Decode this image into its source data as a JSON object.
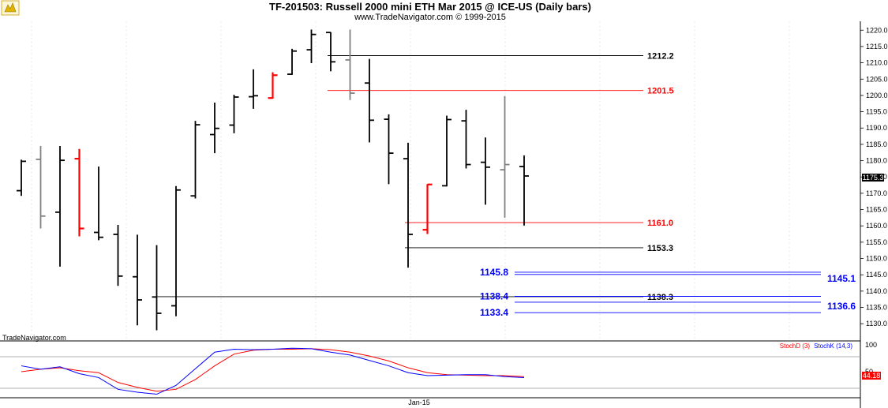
{
  "header": {
    "title": "TF-201503:  Russell 2000 mini ETH Mar 2015 @ ICE-US  (Daily bars)",
    "subtitle": "www.TradeNavigator.com © 1999-2015",
    "watermark": "TradeNavigator.com"
  },
  "colors": {
    "bar_black": "#000000",
    "bar_red": "#ff0000",
    "bar_gray": "#808080",
    "level_blue": "#0000ff",
    "level_red": "#ff0000",
    "level_black": "#000000",
    "stoch_d": "#ff0000",
    "stoch_k": "#0000ff"
  },
  "chart_data": {
    "type": "ohlc",
    "price_axis": {
      "ylim": [
        1127,
        1222
      ],
      "ticks": [
        1130,
        1135,
        1140,
        1145,
        1150,
        1155,
        1160,
        1165,
        1170,
        1175,
        1180,
        1185,
        1190,
        1195,
        1200,
        1205,
        1210,
        1215,
        1220
      ],
      "last_price_label": "1175.3"
    },
    "x_label": "Jan-15",
    "bars": [
      {
        "o": 1170.8,
        "h": 1180.3,
        "l": 1169.2,
        "c": 1179.8,
        "color": "black"
      },
      {
        "o": 1180.4,
        "h": 1184.5,
        "l": 1159.2,
        "c": 1163.0,
        "color": "gray"
      },
      {
        "o": 1164.2,
        "h": 1184.5,
        "l": 1147.5,
        "c": 1180.1,
        "color": "black"
      },
      {
        "o": 1180.6,
        "h": 1183.6,
        "l": 1156.8,
        "c": 1159.2,
        "color": "red"
      },
      {
        "o": 1158.0,
        "h": 1178.2,
        "l": 1155.6,
        "c": 1156.5,
        "color": "black"
      },
      {
        "o": 1157.4,
        "h": 1160.3,
        "l": 1141.6,
        "c": 1144.6,
        "color": "black"
      },
      {
        "o": 1144.4,
        "h": 1157.3,
        "l": 1129.5,
        "c": 1137.3,
        "color": "black"
      },
      {
        "o": 1138.2,
        "h": 1154.1,
        "l": 1128.0,
        "c": 1133.2,
        "color": "black"
      },
      {
        "o": 1135.5,
        "h": 1172.2,
        "l": 1132.3,
        "c": 1171.0,
        "color": "black"
      },
      {
        "o": 1169.2,
        "h": 1192.2,
        "l": 1168.4,
        "c": 1191.0,
        "color": "black"
      },
      {
        "o": 1188.0,
        "h": 1197.8,
        "l": 1182.3,
        "c": 1189.9,
        "color": "black"
      },
      {
        "o": 1190.9,
        "h": 1200.2,
        "l": 1188.4,
        "c": 1199.5,
        "color": "black"
      },
      {
        "o": 1199.6,
        "h": 1208.0,
        "l": 1195.9,
        "c": 1199.9,
        "color": "black"
      },
      {
        "o": 1199.2,
        "h": 1207.1,
        "l": 1199.0,
        "c": 1206.2,
        "color": "red"
      },
      {
        "o": 1206.5,
        "h": 1214.3,
        "l": 1206.3,
        "c": 1213.6,
        "color": "black"
      },
      {
        "o": 1214.0,
        "h": 1220.2,
        "l": 1209.9,
        "c": 1218.7,
        "color": "black"
      },
      {
        "o": 1219.3,
        "h": 1219.4,
        "l": 1207.4,
        "c": 1210.3,
        "color": "black"
      },
      {
        "o": 1210.9,
        "h": 1220.2,
        "l": 1198.6,
        "c": 1200.7,
        "color": "gray"
      },
      {
        "o": 1203.8,
        "h": 1211.2,
        "l": 1185.6,
        "c": 1192.4,
        "color": "black"
      },
      {
        "o": 1192.7,
        "h": 1194.2,
        "l": 1172.8,
        "c": 1182.3,
        "color": "black"
      },
      {
        "o": 1180.6,
        "h": 1185.5,
        "l": 1147.2,
        "c": 1157.4,
        "color": "black"
      },
      {
        "o": 1158.8,
        "h": 1172.8,
        "l": 1157.5,
        "c": 1172.7,
        "color": "red"
      },
      {
        "o": 1172.3,
        "h": 1193.8,
        "l": 1172.1,
        "c": 1192.6,
        "color": "black"
      },
      {
        "o": 1192.2,
        "h": 1195.6,
        "l": 1177.6,
        "c": 1178.8,
        "color": "black"
      },
      {
        "o": 1179.5,
        "h": 1187.1,
        "l": 1166.5,
        "c": 1178.0,
        "color": "black"
      },
      {
        "o": 1177.2,
        "h": 1199.8,
        "l": 1162.5,
        "c": 1178.8,
        "color": "gray"
      },
      {
        "o": 1178.2,
        "h": 1181.6,
        "l": 1160.1,
        "c": 1175.3,
        "color": "black"
      }
    ],
    "levels": [
      {
        "value": 1212.2,
        "label": "1212.2",
        "color": "black",
        "from_bar": 16
      },
      {
        "value": 1201.5,
        "label": "1201.5",
        "color": "red",
        "from_bar": 16
      },
      {
        "value": 1161.0,
        "label": "1161.0",
        "color": "red",
        "from_bar": 20
      },
      {
        "value": 1153.3,
        "label": "1153.3",
        "color": "black",
        "from_bar": 20
      },
      {
        "value": 1138.3,
        "label": "1138.3",
        "color": "black",
        "from_bar": 7
      }
    ],
    "zones": [
      {
        "value_left": 1145.8,
        "value_right": 1145.1,
        "left_label": "1145.8",
        "right_label": "1145.1"
      },
      {
        "value_left": 1138.4,
        "value_right": 1136.6,
        "left_label": "1138.4",
        "right_label": "1136.6"
      },
      {
        "value_left": 1133.4,
        "value_right": 1133.4,
        "left_label": "1133.4",
        "right_label": ""
      }
    ],
    "indicator": {
      "name_d": "StochD (3)",
      "name_k": "StochK (14,3)",
      "top_label": "100",
      "value_label": "44.18",
      "mid_label": "50",
      "ylim": [
        0,
        100
      ],
      "levels": [
        80,
        20
      ],
      "stoch_k": [
        62,
        55,
        60,
        46,
        38,
        14,
        8,
        4,
        22,
        56,
        90,
        96,
        95,
        96,
        98,
        97,
        90,
        84,
        73,
        62,
        48,
        42,
        43,
        44,
        44,
        40,
        38
      ],
      "stoch_d": [
        50,
        55,
        58,
        52,
        48,
        28,
        18,
        10,
        14,
        34,
        62,
        86,
        94,
        96,
        96,
        97,
        95,
        90,
        82,
        72,
        58,
        48,
        44,
        43,
        42,
        42,
        40
      ]
    }
  }
}
